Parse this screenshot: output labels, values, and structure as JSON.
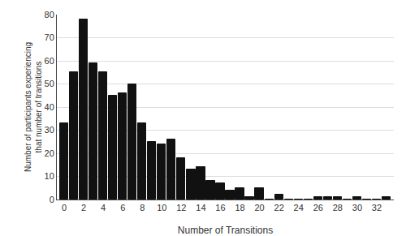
{
  "chart_data": {
    "type": "bar",
    "x": [
      0,
      1,
      2,
      3,
      4,
      5,
      6,
      7,
      8,
      9,
      10,
      11,
      12,
      13,
      14,
      15,
      16,
      17,
      18,
      19,
      20,
      21,
      22,
      23,
      24,
      25,
      26,
      27,
      28,
      29,
      30,
      31,
      32,
      33
    ],
    "values": [
      33,
      55,
      78,
      59,
      55,
      45,
      46,
      50,
      33,
      25,
      24,
      26,
      18,
      13,
      14,
      8,
      7,
      4,
      5,
      1,
      5,
      0,
      2,
      0,
      0,
      0,
      1,
      1,
      1,
      0,
      1,
      0,
      0,
      1
    ],
    "color": "#111111",
    "xlabel": "Number of Transitions",
    "ylabel": "Number of participants experiencing\nthat number of transitions",
    "xlim": [
      -0.75,
      33.75
    ],
    "xticks": [
      0,
      2,
      4,
      6,
      8,
      10,
      12,
      14,
      16,
      18,
      20,
      22,
      24,
      26,
      28,
      30,
      32
    ],
    "ylim": [
      0,
      80
    ],
    "yticks": [
      0,
      10,
      20,
      30,
      40,
      50,
      60,
      70,
      80
    ],
    "grid": true
  }
}
